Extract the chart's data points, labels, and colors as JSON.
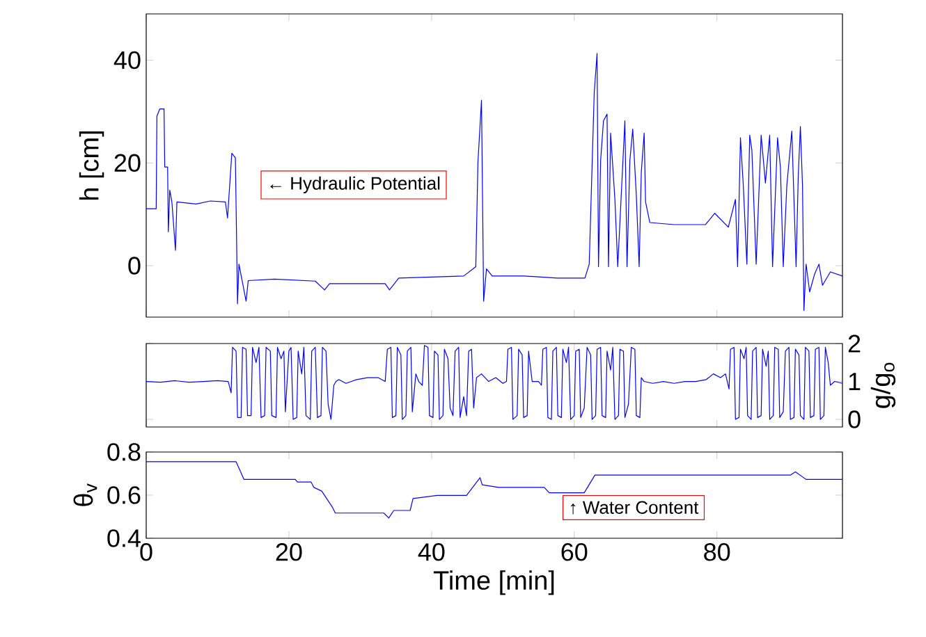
{
  "chart_data": [
    {
      "type": "line",
      "ylabel": "h [cm]",
      "xlim": [
        0,
        97.6
      ],
      "xticks": [
        0,
        20,
        40,
        60,
        80
      ],
      "ylim": [
        -10,
        49
      ],
      "yticks": [
        0,
        20,
        40
      ],
      "tick_labels": "y",
      "annotations": [
        "← Hydraulic Potential"
      ],
      "series": [
        {
          "color": "#0000ff",
          "x": [
            0,
            1.4,
            1.5,
            1.9,
            2.5,
            2.6,
            3.0,
            3.1,
            3.3,
            3.6,
            4.1,
            4.3,
            7,
            9,
            11.1,
            11.4,
            12.0,
            12.5,
            12.8,
            13.0,
            13.5,
            14.0,
            14.3,
            18,
            23.7,
            25.0,
            25.7,
            27.0,
            33.5,
            34.1,
            35.4,
            40,
            44.5,
            46.2,
            46.5,
            47.0,
            47.3,
            47.7,
            48.5,
            53,
            57.6,
            61.5,
            62.1,
            62.8,
            63.2,
            63.4,
            63.7,
            64.1,
            64.6,
            64.8,
            65.1,
            65.7,
            66.1,
            67.1,
            67.4,
            67.8,
            68.2,
            68.7,
            69.1,
            69.4,
            69.8,
            70.0,
            70.6,
            74,
            78.4,
            79.7,
            81.6,
            82.6,
            82.9,
            83.3,
            83.7,
            84.2,
            84.6,
            84.9,
            85.5,
            86.2,
            86.8,
            87.4,
            87.8,
            88.5,
            88.9,
            89.3,
            89.8,
            90.5,
            91.1,
            91.4,
            91.7,
            92.0,
            92.2,
            92.5,
            93.0,
            93.7,
            94.3,
            94.8,
            95.9,
            97.6
          ],
          "values": [
            11.1,
            11.1,
            29.1,
            30.5,
            30.5,
            19.2,
            19.2,
            6.6,
            14.7,
            12.4,
            3.0,
            12.4,
            12.0,
            12.6,
            12.4,
            9.3,
            21.9,
            21.0,
            -7.4,
            0.3,
            -3.3,
            -6.9,
            -2.9,
            -2.6,
            -3.0,
            -4.7,
            -3.5,
            -3.5,
            -3.5,
            -4.7,
            -2.4,
            -2.2,
            -2.0,
            -0.2,
            20.1,
            32.2,
            -6.9,
            -0.6,
            -2.0,
            -2.0,
            -2.4,
            -2.4,
            0.3,
            33.6,
            41.3,
            -0.2,
            20.5,
            28.2,
            29.5,
            -0.2,
            25.8,
            12.9,
            -0.2,
            28.2,
            -0.2,
            20.5,
            26.6,
            13.8,
            -0.2,
            18.2,
            25.8,
            12.4,
            8.4,
            8.0,
            8.0,
            10.2,
            7.5,
            12.9,
            -0.2,
            24.9,
            15.6,
            0.3,
            25.4,
            22.5,
            0.3,
            25.4,
            16.1,
            25.4,
            -0.2,
            24.9,
            19.2,
            -0.2,
            15.6,
            26.2,
            -0.2,
            17.4,
            27.1,
            15.6,
            -8.7,
            0.3,
            -5.1,
            -1.6,
            0.3,
            -3.8,
            -1.2,
            -2.0
          ]
        }
      ]
    },
    {
      "type": "line",
      "y2label": "g/g$_{o}$",
      "xlim": [
        0,
        97.6
      ],
      "xticks": [
        0,
        20,
        40,
        60,
        80
      ],
      "y2lim": [
        -0.2,
        2
      ],
      "y2ticks": [
        0,
        1,
        2
      ],
      "tick_labels": "y",
      "series": [
        {
          "color": "#0000ff",
          "axis": "y2",
          "x": [
            0,
            2,
            4,
            6,
            8,
            10,
            11.5,
            11.9,
            12.1,
            12.6,
            12.8,
            13.3,
            13.5,
            14.0,
            14.2,
            14.7,
            14.9,
            15.4,
            15.8,
            16.1,
            16.6,
            16.8,
            17.4,
            17.6,
            18.2,
            18.4,
            18.9,
            19.3,
            19.5,
            20.0,
            20.3,
            20.6,
            21.1,
            21.3,
            21.8,
            22.1,
            22.4,
            23.0,
            23.2,
            23.7,
            24.0,
            24.5,
            24.7,
            25.2,
            25.5,
            25.9,
            26.3,
            26.6,
            27,
            28,
            29.5,
            31,
            32.5,
            33.5,
            33.8,
            34.3,
            34.5,
            35.0,
            35.2,
            35.7,
            35.9,
            36.4,
            36.6,
            37.1,
            37.3,
            37.8,
            38.2,
            38.7,
            39.0,
            39.5,
            39.7,
            40.2,
            40.4,
            40.9,
            41.1,
            41.6,
            41.8,
            42.3,
            42.6,
            43.0,
            43.3,
            43.8,
            44.0,
            44.5,
            44.9,
            45.2,
            45.6,
            45.9,
            46.3,
            47.0,
            48.0,
            49.0,
            50.0,
            50.5,
            50.7,
            51.2,
            51.4,
            52.0,
            52.2,
            52.7,
            52.9,
            53.4,
            53.6,
            54.1,
            55.0,
            55.4,
            55.6,
            56.1,
            56.3,
            56.8,
            57.0,
            57.5,
            57.7,
            58.2,
            58.4,
            58.9,
            59.2,
            59.5,
            60.0,
            60.2,
            60.7,
            60.9,
            61.4,
            61.8,
            62.3,
            62.5,
            63.0,
            63.2,
            63.7,
            63.9,
            64.4,
            64.6,
            65.1,
            65.4,
            65.7,
            66.2,
            66.4,
            66.9,
            67.1,
            67.6,
            68.0,
            68.5,
            68.7,
            69.2,
            69.4,
            69.8,
            71,
            72.5,
            74,
            75.5,
            77,
            78.5,
            79.5,
            80.5,
            81.2,
            81.7,
            81.9,
            82.4,
            82.6,
            83.1,
            83.3,
            83.8,
            84.1,
            84.3,
            84.8,
            85.0,
            85.5,
            85.7,
            86.2,
            86.4,
            86.9,
            87.2,
            87.4,
            87.9,
            88.1,
            88.6,
            88.8,
            89.3,
            89.6,
            90.1,
            90.3,
            90.8,
            91.0,
            91.5,
            91.7,
            92.2,
            92.4,
            92.9,
            93.1,
            93.6,
            93.8,
            94.3,
            94.5,
            95.0,
            95.2,
            95.6,
            95.9,
            96.5,
            97.6
          ],
          "values": [
            1.0,
            0.98,
            1.02,
            0.98,
            1.0,
            1.02,
            1.0,
            0.7,
            1.9,
            1.8,
            0.05,
            0.05,
            1.9,
            1.85,
            0.1,
            0.1,
            1.9,
            1.5,
            1.9,
            0.05,
            0.1,
            1.9,
            1.8,
            0.1,
            0.05,
            1.9,
            1.6,
            1.8,
            0.2,
            1.8,
            1.9,
            0.0,
            0.05,
            1.8,
            1.2,
            1.9,
            0.1,
            0.0,
            1.8,
            1.9,
            0.05,
            0.1,
            1.9,
            1.8,
            0.4,
            0.0,
            0.9,
            1.0,
            1.05,
            0.95,
            1.05,
            1.1,
            1.1,
            1.0,
            1.85,
            1.9,
            0.05,
            0.1,
            1.9,
            1.7,
            0.0,
            0.1,
            1.8,
            1.9,
            0.2,
            1.2,
            1.0,
            0.9,
            1.95,
            1.9,
            0.1,
            0.05,
            1.8,
            1.7,
            0.0,
            0.1,
            1.85,
            1.6,
            0.3,
            0.1,
            1.8,
            1.9,
            0.05,
            0.6,
            0.1,
            1.8,
            1.85,
            0.3,
            1.1,
            1.2,
            1.0,
            1.1,
            0.95,
            1.0,
            1.85,
            1.9,
            0.0,
            0.1,
            1.85,
            1.7,
            0.05,
            0.1,
            1.8,
            1.0,
            1.0,
            0.9,
            1.85,
            1.9,
            0.05,
            0.0,
            1.8,
            1.9,
            0.1,
            0.05,
            1.85,
            1.5,
            1.9,
            0.0,
            0.1,
            1.8,
            1.85,
            0.05,
            0.3,
            1.9,
            1.7,
            0.0,
            0.1,
            1.85,
            1.9,
            0.1,
            0.05,
            1.8,
            1.3,
            1.9,
            0.0,
            0.1,
            1.85,
            1.8,
            0.05,
            0.4,
            1.9,
            1.85,
            0.1,
            0.05,
            1.1,
            1.0,
            0.95,
            1.0,
            0.95,
            1.0,
            1.0,
            1.05,
            1.2,
            1.1,
            1.2,
            0.8,
            1.85,
            1.9,
            0.0,
            0.05,
            1.85,
            1.6,
            1.9,
            0.1,
            0.0,
            1.8,
            1.9,
            0.05,
            0.1,
            1.85,
            1.4,
            1.8,
            0.0,
            0.1,
            1.9,
            1.85,
            0.05,
            0.2,
            1.8,
            1.9,
            0.0,
            0.05,
            1.85,
            1.7,
            0.1,
            0.0,
            1.9,
            1.8,
            0.05,
            0.1,
            1.85,
            1.9,
            0.0,
            0.1,
            1.9,
            1.5,
            0.9,
            1.0,
            0.95
          ]
        }
      ]
    },
    {
      "type": "line",
      "ylabel": "θ$_{v}$",
      "xlabel": "Time [min]",
      "xlim": [
        0,
        97.6
      ],
      "xticks": [
        0,
        20,
        40,
        60,
        80
      ],
      "ylim": [
        0.4,
        0.8
      ],
      "yticks": [
        0.4,
        0.6,
        0.8
      ],
      "annotations": [
        "↑ Water Content"
      ],
      "series": [
        {
          "color": "#0000ff",
          "x": [
            0,
            12.6,
            13.7,
            20.9,
            21.2,
            23.1,
            23.5,
            24.6,
            26.1,
            26.5,
            33.3,
            34.0,
            34.7,
            37.0,
            37.4,
            40.8,
            44.9,
            46.8,
            47.1,
            49.4,
            55.8,
            56.5,
            61.4,
            62.9,
            90.3,
            91.0,
            92.5,
            97.6
          ],
          "values": [
            0.755,
            0.755,
            0.673,
            0.673,
            0.661,
            0.661,
            0.636,
            0.619,
            0.544,
            0.517,
            0.517,
            0.494,
            0.529,
            0.529,
            0.584,
            0.599,
            0.599,
            0.681,
            0.648,
            0.636,
            0.636,
            0.611,
            0.611,
            0.693,
            0.693,
            0.708,
            0.673,
            0.673
          ]
        }
      ]
    }
  ]
}
